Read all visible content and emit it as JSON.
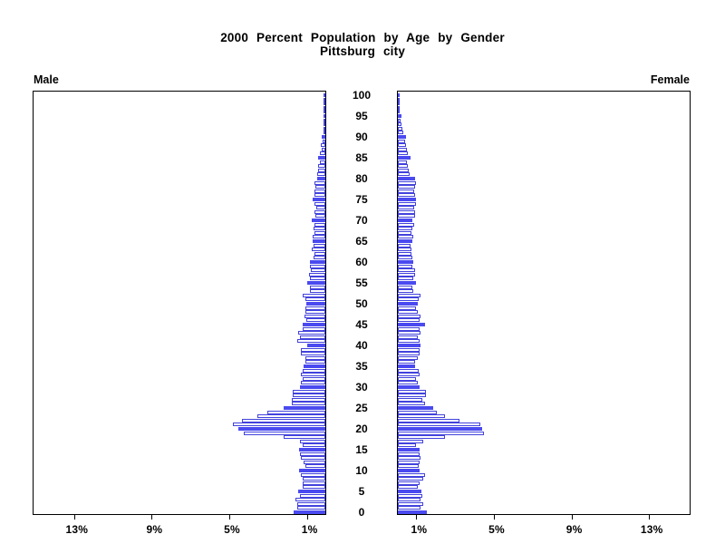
{
  "title": {
    "line1": "2000 Percent Population by Age by Gender",
    "line2": "Pittsburg city"
  },
  "panels": {
    "left_label": "Male",
    "right_label": "Female"
  },
  "colors": {
    "bar_fill": "#4a4af0",
    "bar_outline": "#4242dd",
    "axis": "#000000"
  },
  "axis": {
    "percent_ticks": [
      {
        "label": "1%",
        "percent": 1
      },
      {
        "label": "5%",
        "percent": 5
      },
      {
        "label": "9%",
        "percent": 9
      },
      {
        "label": "13%",
        "percent": 13
      }
    ],
    "age_tick_labels": [
      "0",
      "5",
      "10",
      "15",
      "20",
      "25",
      "30",
      "35",
      "40",
      "45",
      "50",
      "55",
      "60",
      "65",
      "70",
      "75",
      "80",
      "85",
      "90",
      "95",
      "100"
    ]
  },
  "chart_data": {
    "type": "bar",
    "variant": "population-pyramid",
    "title": "2000 Percent Population by Age by Gender",
    "subtitle": "Pittsburg city",
    "value_unit": "percent",
    "xlim": [
      0,
      15
    ],
    "age_min": 0,
    "age_max": 100,
    "highlight_every": 5,
    "legend_position": "none",
    "grid": false,
    "x": [
      0,
      1,
      2,
      3,
      4,
      5,
      6,
      7,
      8,
      9,
      10,
      11,
      12,
      13,
      14,
      15,
      16,
      17,
      18,
      19,
      20,
      21,
      22,
      23,
      24,
      25,
      26,
      27,
      28,
      29,
      30,
      31,
      32,
      33,
      34,
      35,
      36,
      37,
      38,
      39,
      40,
      41,
      42,
      43,
      44,
      45,
      46,
      47,
      48,
      49,
      50,
      51,
      52,
      53,
      54,
      55,
      56,
      57,
      58,
      59,
      60,
      61,
      62,
      63,
      64,
      65,
      66,
      67,
      68,
      69,
      70,
      71,
      72,
      73,
      74,
      75,
      76,
      77,
      78,
      79,
      80,
      81,
      82,
      83,
      84,
      85,
      86,
      87,
      88,
      89,
      90,
      91,
      92,
      93,
      94,
      95,
      96,
      97,
      98,
      99,
      100
    ],
    "series": [
      {
        "name": "Male",
        "direction": "left",
        "values": [
          1.65,
          1.43,
          1.47,
          1.52,
          1.32,
          1.4,
          1.19,
          1.16,
          1.19,
          1.24,
          1.35,
          1.04,
          1.13,
          1.24,
          1.32,
          1.35,
          1.19,
          1.29,
          2.17,
          4.19,
          4.5,
          4.76,
          4.29,
          3.49,
          2.99,
          2.17,
          1.75,
          1.75,
          1.67,
          1.67,
          1.29,
          1.27,
          1.16,
          1.24,
          1.16,
          1.13,
          1.04,
          1.01,
          1.27,
          1.27,
          0.93,
          1.44,
          1.32,
          1.4,
          1.19,
          1.16,
          0.96,
          1.09,
          1.04,
          1.01,
          0.96,
          1.05,
          1.19,
          0.78,
          0.78,
          0.93,
          0.78,
          0.82,
          0.73,
          0.78,
          0.78,
          0.62,
          0.57,
          0.7,
          0.62,
          0.67,
          0.65,
          0.54,
          0.62,
          0.54,
          0.7,
          0.51,
          0.57,
          0.47,
          0.54,
          0.67,
          0.57,
          0.57,
          0.51,
          0.54,
          0.42,
          0.42,
          0.36,
          0.39,
          0.26,
          0.36,
          0.26,
          0.2,
          0.23,
          0.16,
          0.19,
          0.11,
          0.08,
          0.05,
          0.05,
          0.03,
          0.05,
          0.04,
          0.03,
          0.03,
          0.05
        ]
      },
      {
        "name": "Female",
        "direction": "right",
        "values": [
          1.49,
          1.18,
          1.29,
          1.16,
          1.26,
          1.22,
          1.02,
          1.1,
          1.29,
          1.38,
          1.1,
          1.07,
          1.1,
          1.18,
          1.1,
          1.1,
          0.95,
          1.33,
          2.42,
          4.46,
          4.36,
          4.23,
          3.19,
          2.42,
          2.03,
          1.8,
          1.38,
          1.26,
          1.44,
          1.44,
          1.1,
          1.02,
          0.95,
          1.1,
          1.07,
          0.91,
          0.91,
          1.02,
          1.13,
          1.1,
          1.18,
          1.1,
          1.02,
          1.15,
          1.1,
          1.38,
          1.1,
          1.18,
          1.02,
          0.95,
          1.02,
          1.07,
          1.18,
          0.79,
          0.76,
          0.95,
          0.79,
          0.9,
          0.87,
          0.76,
          0.79,
          0.74,
          0.71,
          0.71,
          0.67,
          0.76,
          0.79,
          0.71,
          0.76,
          0.82,
          0.76,
          0.87,
          0.91,
          0.82,
          0.95,
          0.95,
          0.91,
          0.82,
          0.91,
          0.95,
          0.87,
          0.6,
          0.56,
          0.51,
          0.48,
          0.67,
          0.51,
          0.45,
          0.4,
          0.37,
          0.43,
          0.29,
          0.25,
          0.2,
          0.14,
          0.2,
          0.09,
          0.07,
          0.05,
          0.05,
          0.09
        ]
      }
    ]
  }
}
